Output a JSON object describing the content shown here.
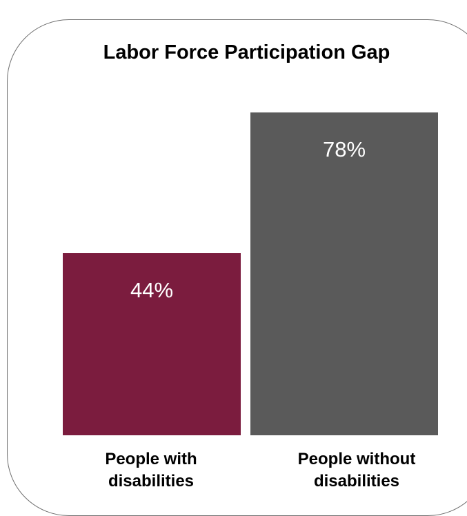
{
  "chart_data": {
    "type": "bar",
    "title": "Labor Force Participation Gap",
    "categories": [
      "People with\ndisabilities",
      "People without\ndisabilities"
    ],
    "values": [
      44,
      78
    ],
    "data_labels": [
      "44%",
      "78%"
    ],
    "colors": [
      "#7b1c3e",
      "#5a5a5a"
    ],
    "label_color": "#ffffff",
    "xlabel": "",
    "ylabel": "",
    "ylim": [
      0,
      100
    ],
    "grid": false,
    "legend": "none"
  }
}
